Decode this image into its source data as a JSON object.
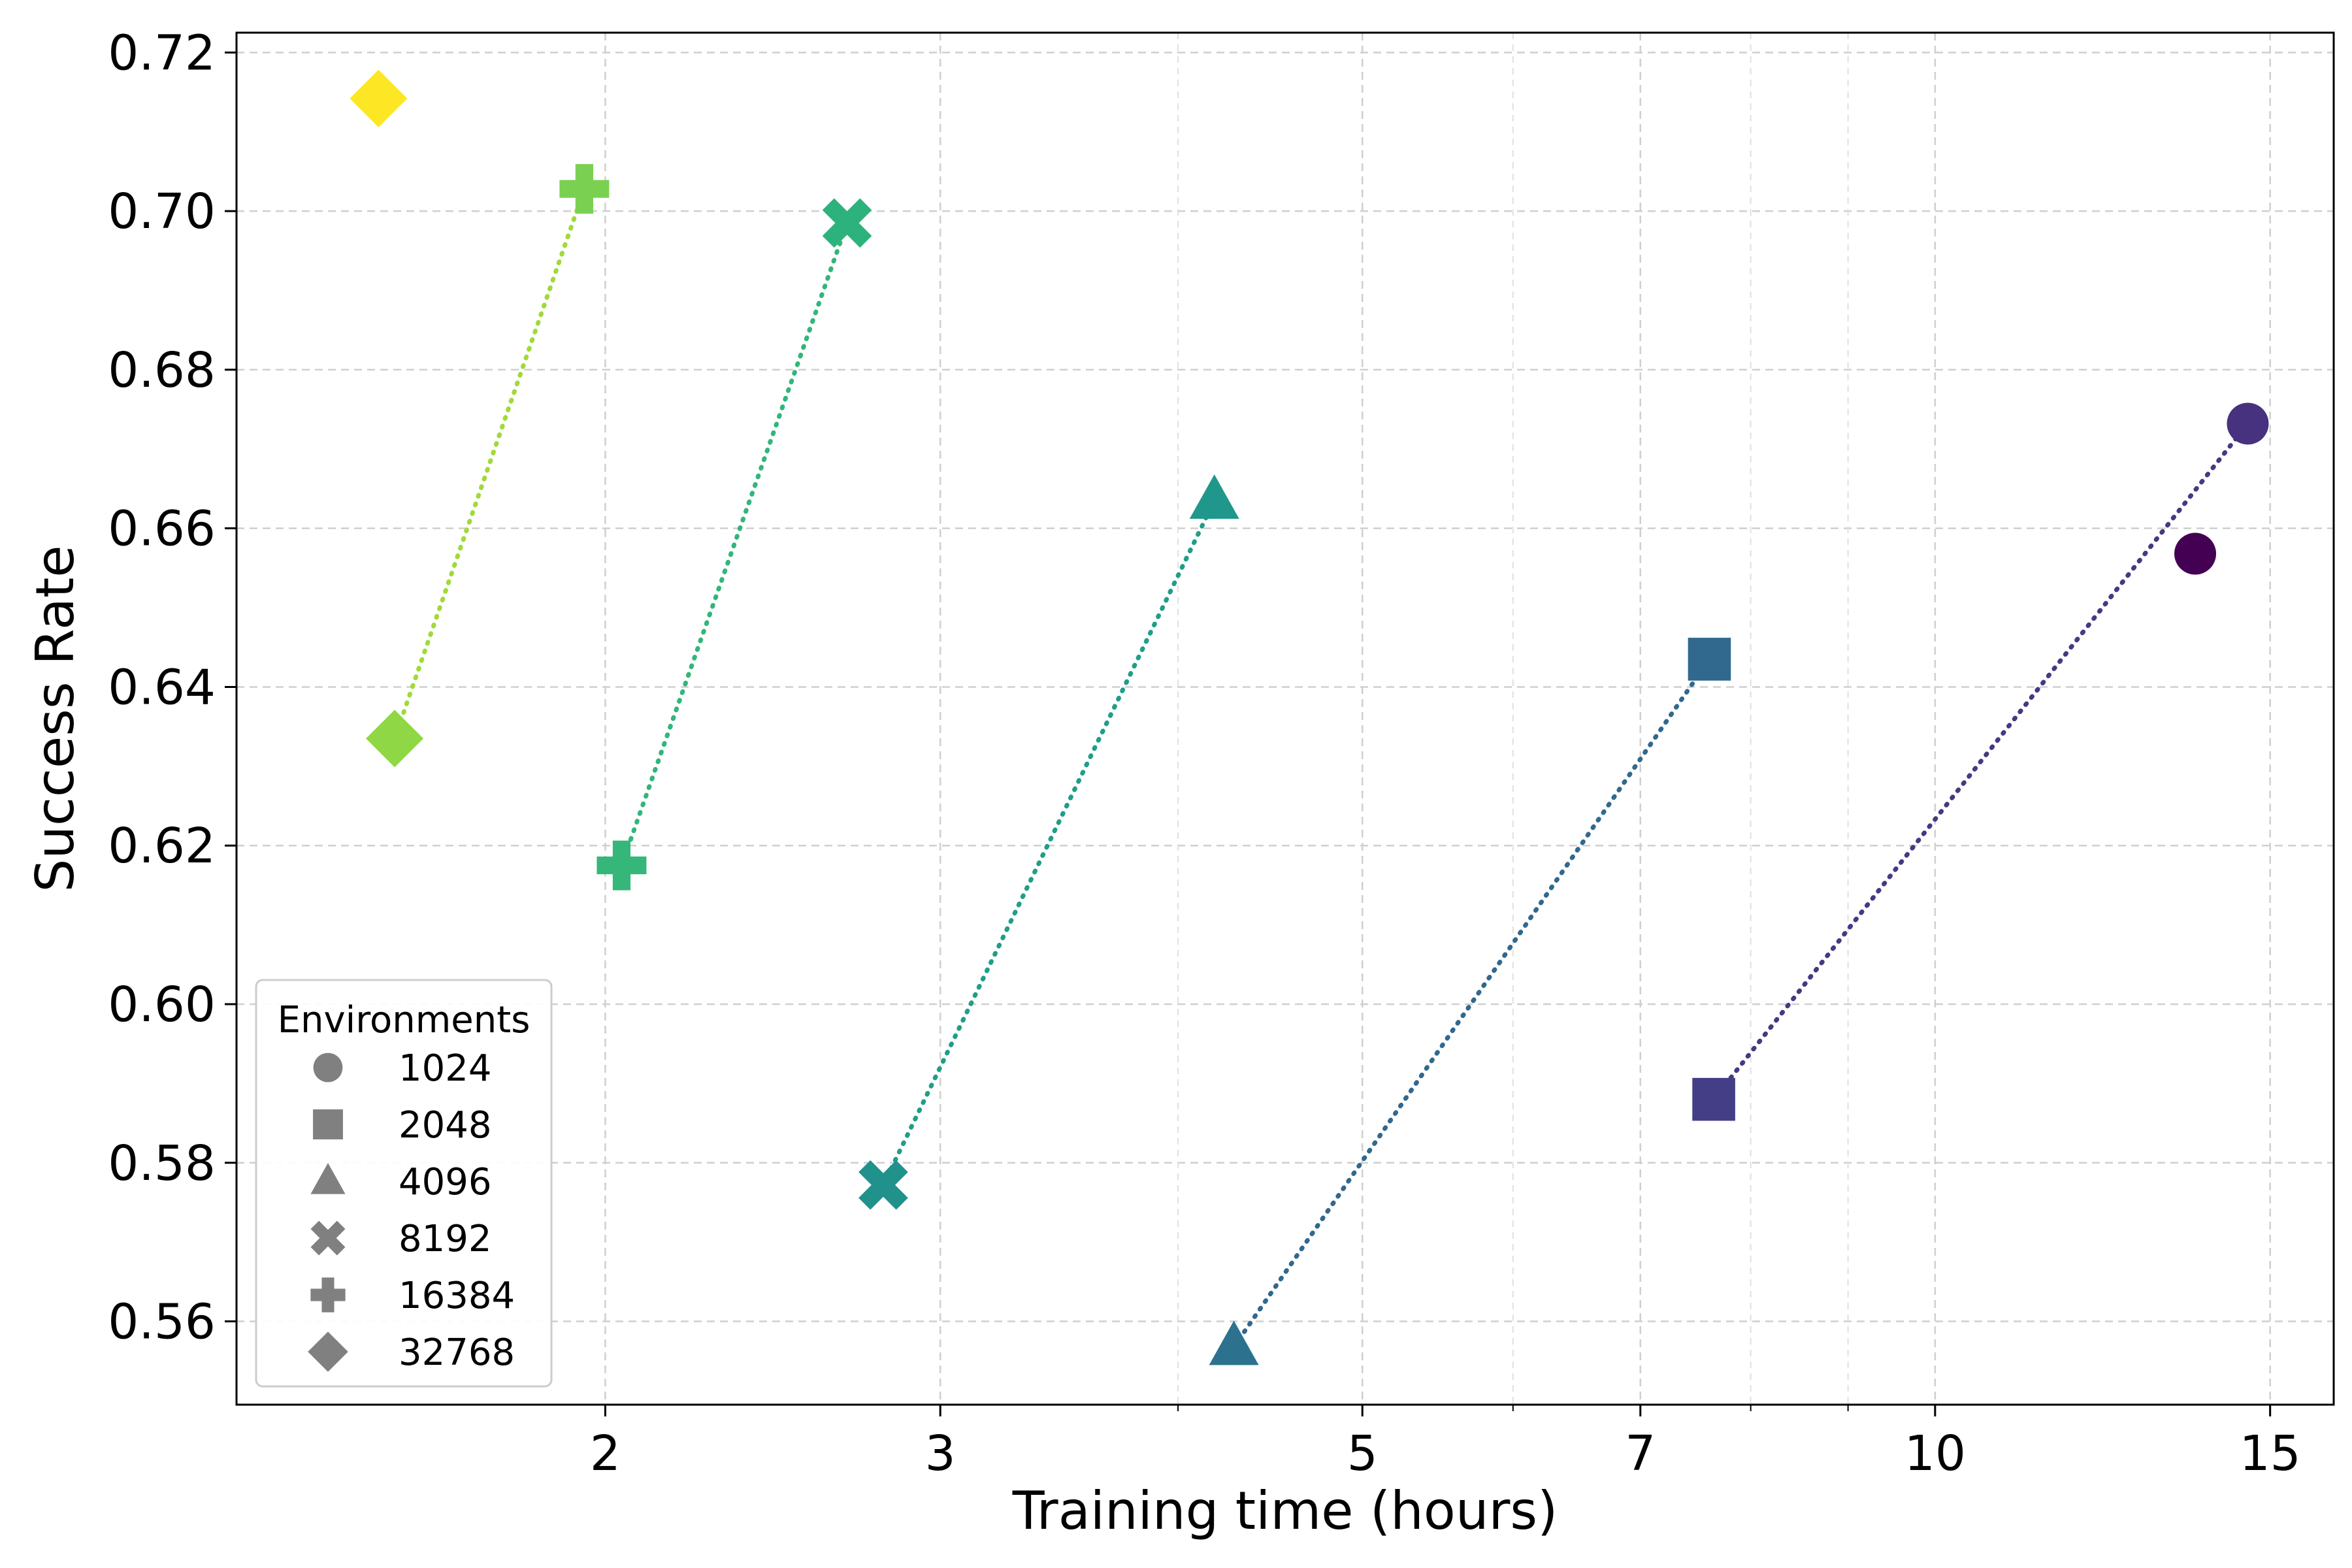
{
  "chart_data": {
    "type": "scatter",
    "xlabel": "Training time (hours)",
    "ylabel": "Success Rate",
    "x_scale": "log",
    "xlim": [
      1.28,
      16.2
    ],
    "ylim": [
      0.5495,
      0.7225
    ],
    "x_ticks": [
      2,
      3,
      5,
      7,
      10,
      15
    ],
    "x_tick_labels": [
      "2",
      "3",
      "5",
      "7",
      "10",
      "15"
    ],
    "x_minor_ticks": [
      4,
      6,
      8,
      9
    ],
    "y_ticks": [
      0.56,
      0.58,
      0.6,
      0.62,
      0.64,
      0.66,
      0.68,
      0.7,
      0.72
    ],
    "y_tick_labels": [
      "0.56",
      "0.58",
      "0.60",
      "0.62",
      "0.64",
      "0.66",
      "0.68",
      "0.70",
      "0.72"
    ],
    "grid": true,
    "legend": {
      "title": "Environments",
      "placement": "bottom-left",
      "marker_color": "#808080",
      "entries": [
        {
          "label": "1024",
          "marker": "circle"
        },
        {
          "label": "2048",
          "marker": "square"
        },
        {
          "label": "4096",
          "marker": "triangle"
        },
        {
          "label": "8192",
          "marker": "x"
        },
        {
          "label": "16384",
          "marker": "plus"
        },
        {
          "label": "32768",
          "marker": "diamond"
        }
      ]
    },
    "lines": [
      {
        "color": "#a0da39",
        "x": [
          1.55,
          1.95
        ],
        "y": [
          0.6335,
          0.7028
        ]
      },
      {
        "color": "#32b67a",
        "x": [
          2.04,
          2.68
        ],
        "y": [
          0.6175,
          0.6985
        ]
      },
      {
        "color": "#1f9e89",
        "x": [
          2.8,
          4.18
        ],
        "y": [
          0.5772,
          0.6635
        ]
      },
      {
        "color": "#31688e",
        "x": [
          4.28,
          7.61
        ],
        "y": [
          0.5568,
          0.6435
        ]
      },
      {
        "color": "#443983",
        "x": [
          7.65,
          14.6
        ],
        "y": [
          0.588,
          0.6732
        ]
      }
    ],
    "points": [
      {
        "x": 1.52,
        "y": 0.7142,
        "marker": "diamond",
        "color": "#fde725"
      },
      {
        "x": 1.55,
        "y": 0.6335,
        "marker": "diamond",
        "color": "#8fd744"
      },
      {
        "x": 1.95,
        "y": 0.7028,
        "marker": "plus",
        "color": "#7ad151"
      },
      {
        "x": 2.04,
        "y": 0.6175,
        "marker": "plus",
        "color": "#35b779"
      },
      {
        "x": 2.68,
        "y": 0.6985,
        "marker": "x",
        "color": "#2db27d"
      },
      {
        "x": 2.8,
        "y": 0.5772,
        "marker": "x",
        "color": "#21918c"
      },
      {
        "x": 4.18,
        "y": 0.6635,
        "marker": "triangle",
        "color": "#1f988b"
      },
      {
        "x": 4.28,
        "y": 0.5568,
        "marker": "triangle",
        "color": "#2c728e"
      },
      {
        "x": 7.61,
        "y": 0.6435,
        "marker": "square",
        "color": "#31688e"
      },
      {
        "x": 7.65,
        "y": 0.588,
        "marker": "square",
        "color": "#433e85"
      },
      {
        "x": 13.7,
        "y": 0.6568,
        "marker": "circle",
        "color": "#440154"
      },
      {
        "x": 14.6,
        "y": 0.6732,
        "marker": "circle",
        "color": "#46327e"
      }
    ]
  }
}
